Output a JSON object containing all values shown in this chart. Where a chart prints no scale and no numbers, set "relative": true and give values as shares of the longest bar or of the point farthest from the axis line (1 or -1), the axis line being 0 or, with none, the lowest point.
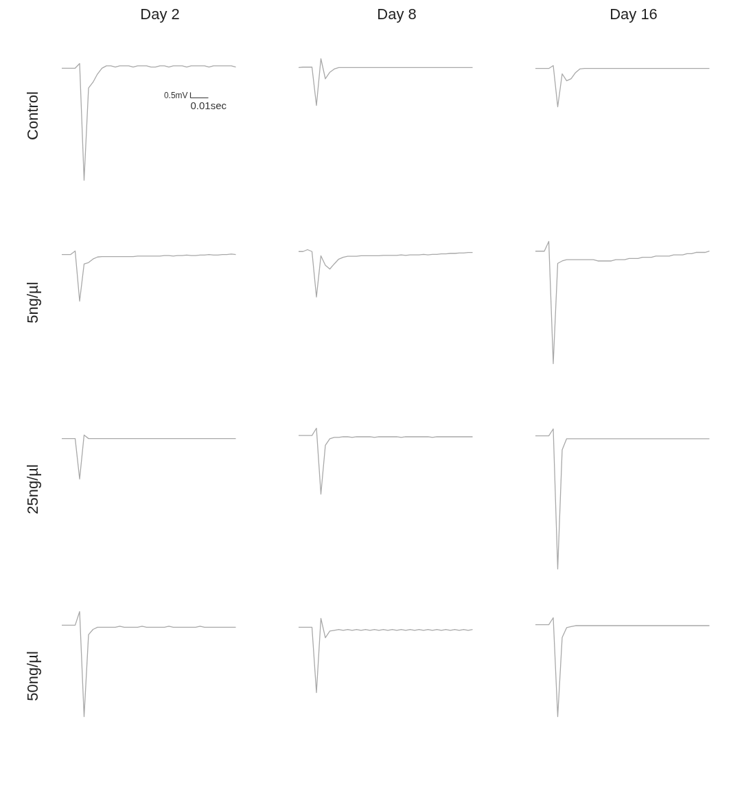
{
  "chart_data": [
    {
      "type": "line",
      "relative": true,
      "title": "Day 2",
      "ylabel": "Control",
      "tick_labels": false,
      "annotations": [
        "0.5mV",
        "0.01sec"
      ],
      "categories": [
        null,
        null,
        null,
        null,
        null,
        null,
        null,
        null,
        null,
        null,
        null,
        null,
        null,
        null,
        null,
        null,
        null,
        null,
        null,
        null,
        null,
        null,
        null,
        null,
        null,
        null,
        null,
        null,
        null,
        null,
        null,
        null,
        null,
        null,
        null,
        null,
        null,
        null,
        null,
        null
      ],
      "series": [
        {
          "color": "#a8a8a8",
          "values": [
            0.96,
            0.96,
            0.96,
            0.96,
            1.0,
            0,
            0.79,
            0.84,
            0.91,
            0.96,
            0.98,
            0.98,
            0.97,
            0.98,
            0.98,
            0.98,
            0.97,
            0.98,
            0.98,
            0.98,
            0.97,
            0.97,
            0.98,
            0.98,
            0.97,
            0.98,
            0.98,
            0.98,
            0.97,
            0.98,
            0.98,
            0.98,
            0.98,
            0.97,
            0.98,
            0.98,
            0.98,
            0.98,
            0.98,
            0.97
          ]
        }
      ]
    },
    {
      "type": "line",
      "relative": true,
      "title": "Day 8",
      "tick_labels": false,
      "categories": [
        null,
        null,
        null,
        null,
        null,
        null,
        null,
        null,
        null,
        null,
        null,
        null,
        null,
        null,
        null,
        null,
        null,
        null,
        null,
        null,
        null,
        null,
        null,
        null,
        null,
        null,
        null,
        null,
        null,
        null,
        null,
        null,
        null,
        null,
        null,
        null,
        null,
        null,
        null,
        null
      ],
      "series": [
        {
          "color": "#a8a8a8",
          "values": [
            0.81,
            0.82,
            0.82,
            0.82,
            0,
            1.0,
            0.57,
            0.71,
            0.78,
            0.81,
            0.81,
            0.81,
            0.81,
            0.81,
            0.81,
            0.81,
            0.81,
            0.81,
            0.81,
            0.81,
            0.81,
            0.81,
            0.81,
            0.81,
            0.81,
            0.81,
            0.81,
            0.81,
            0.81,
            0.81,
            0.81,
            0.81,
            0.81,
            0.81,
            0.81,
            0.81,
            0.81,
            0.81,
            0.81,
            0.81
          ]
        }
      ]
    },
    {
      "type": "line",
      "relative": true,
      "title": "Day 16",
      "tick_labels": false,
      "categories": [
        null,
        null,
        null,
        null,
        null,
        null,
        null,
        null,
        null,
        null,
        null,
        null,
        null,
        null,
        null,
        null,
        null,
        null,
        null,
        null,
        null,
        null,
        null,
        null,
        null,
        null,
        null,
        null,
        null,
        null,
        null,
        null,
        null,
        null,
        null,
        null,
        null,
        null,
        null,
        null
      ],
      "series": [
        {
          "color": "#a8a8a8",
          "values": [
            0.93,
            0.93,
            0.93,
            0.93,
            1.0,
            0,
            0.8,
            0.63,
            0.68,
            0.83,
            0.92,
            0.93,
            0.93,
            0.93,
            0.93,
            0.93,
            0.93,
            0.93,
            0.93,
            0.93,
            0.93,
            0.93,
            0.93,
            0.93,
            0.93,
            0.93,
            0.93,
            0.93,
            0.93,
            0.93,
            0.93,
            0.93,
            0.93,
            0.93,
            0.93,
            0.93,
            0.93,
            0.93,
            0.93,
            0.93
          ]
        }
      ]
    },
    {
      "type": "line",
      "relative": true,
      "ylabel": "5ng/µl",
      "tick_labels": false,
      "categories": [
        null,
        null,
        null,
        null,
        null,
        null,
        null,
        null,
        null,
        null,
        null,
        null,
        null,
        null,
        null,
        null,
        null,
        null,
        null,
        null,
        null,
        null,
        null,
        null,
        null,
        null,
        null,
        null,
        null,
        null,
        null,
        null,
        null,
        null,
        null,
        null,
        null,
        null,
        null,
        null
      ],
      "series": [
        {
          "color": "#a8a8a8",
          "values": [
            0.93,
            0.93,
            0.93,
            1.0,
            0,
            0.74,
            0.77,
            0.84,
            0.88,
            0.89,
            0.89,
            0.89,
            0.89,
            0.89,
            0.89,
            0.89,
            0.89,
            0.9,
            0.9,
            0.9,
            0.9,
            0.9,
            0.9,
            0.91,
            0.91,
            0.9,
            0.91,
            0.91,
            0.92,
            0.91,
            0.91,
            0.92,
            0.92,
            0.93,
            0.92,
            0.92,
            0.93,
            0.93,
            0.94,
            0.93
          ]
        }
      ]
    },
    {
      "type": "line",
      "relative": true,
      "tick_labels": false,
      "categories": [
        null,
        null,
        null,
        null,
        null,
        null,
        null,
        null,
        null,
        null,
        null,
        null,
        null,
        null,
        null,
        null,
        null,
        null,
        null,
        null,
        null,
        null,
        null,
        null,
        null,
        null,
        null,
        null,
        null,
        null,
        null,
        null,
        null,
        null,
        null,
        null,
        null,
        null,
        null,
        null
      ],
      "series": [
        {
          "color": "#a8a8a8",
          "values": [
            0.96,
            0.96,
            1.0,
            0.96,
            0,
            0.87,
            0.67,
            0.59,
            0.7,
            0.8,
            0.84,
            0.86,
            0.86,
            0.86,
            0.87,
            0.87,
            0.87,
            0.87,
            0.87,
            0.88,
            0.88,
            0.88,
            0.88,
            0.89,
            0.88,
            0.89,
            0.89,
            0.89,
            0.9,
            0.89,
            0.9,
            0.9,
            0.91,
            0.91,
            0.92,
            0.92,
            0.93,
            0.93,
            0.94,
            0.94
          ]
        }
      ]
    },
    {
      "type": "line",
      "relative": true,
      "tick_labels": false,
      "categories": [
        null,
        null,
        null,
        null,
        null,
        null,
        null,
        null,
        null,
        null,
        null,
        null,
        null,
        null,
        null,
        null,
        null,
        null,
        null,
        null,
        null,
        null,
        null,
        null,
        null,
        null,
        null,
        null,
        null,
        null,
        null,
        null,
        null,
        null,
        null,
        null,
        null,
        null,
        null,
        null
      ],
      "series": [
        {
          "color": "#a8a8a8",
          "values": [
            0.92,
            0.92,
            0.92,
            1.0,
            0,
            0.82,
            0.84,
            0.85,
            0.85,
            0.85,
            0.85,
            0.85,
            0.85,
            0.85,
            0.84,
            0.84,
            0.84,
            0.84,
            0.85,
            0.85,
            0.85,
            0.86,
            0.86,
            0.86,
            0.87,
            0.87,
            0.87,
            0.88,
            0.88,
            0.88,
            0.88,
            0.89,
            0.89,
            0.89,
            0.9,
            0.9,
            0.91,
            0.91,
            0.91,
            0.92
          ]
        }
      ]
    },
    {
      "type": "line",
      "relative": true,
      "ylabel": "25ng/µl",
      "tick_labels": false,
      "categories": [
        null,
        null,
        null,
        null,
        null,
        null,
        null,
        null,
        null,
        null,
        null,
        null,
        null,
        null,
        null,
        null,
        null,
        null,
        null,
        null,
        null,
        null,
        null,
        null,
        null,
        null,
        null,
        null,
        null,
        null,
        null,
        null,
        null,
        null,
        null,
        null,
        null,
        null,
        null,
        null
      ],
      "series": [
        {
          "color": "#a8a8a8",
          "values": [
            0.92,
            0.92,
            0.92,
            0.92,
            0,
            1.0,
            0.92,
            0.92,
            0.92,
            0.92,
            0.92,
            0.92,
            0.92,
            0.92,
            0.92,
            0.92,
            0.92,
            0.92,
            0.92,
            0.92,
            0.92,
            0.92,
            0.92,
            0.92,
            0.92,
            0.92,
            0.92,
            0.92,
            0.92,
            0.92,
            0.92,
            0.92,
            0.92,
            0.92,
            0.92,
            0.92,
            0.92,
            0.92,
            0.92,
            0.92
          ]
        }
      ]
    },
    {
      "type": "line",
      "relative": true,
      "tick_labels": false,
      "categories": [
        null,
        null,
        null,
        null,
        null,
        null,
        null,
        null,
        null,
        null,
        null,
        null,
        null,
        null,
        null,
        null,
        null,
        null,
        null,
        null,
        null,
        null,
        null,
        null,
        null,
        null,
        null,
        null,
        null,
        null,
        null,
        null,
        null,
        null,
        null,
        null,
        null,
        null,
        null,
        null
      ],
      "series": [
        {
          "color": "#a8a8a8",
          "values": [
            0.89,
            0.89,
            0.89,
            0.89,
            1.0,
            0,
            0.74,
            0.84,
            0.86,
            0.86,
            0.87,
            0.87,
            0.86,
            0.87,
            0.87,
            0.87,
            0.87,
            0.86,
            0.87,
            0.87,
            0.87,
            0.87,
            0.87,
            0.86,
            0.87,
            0.87,
            0.87,
            0.87,
            0.87,
            0.87,
            0.86,
            0.87,
            0.87,
            0.87,
            0.87,
            0.87,
            0.87,
            0.87,
            0.87,
            0.87
          ]
        }
      ]
    },
    {
      "type": "line",
      "relative": true,
      "tick_labels": false,
      "categories": [
        null,
        null,
        null,
        null,
        null,
        null,
        null,
        null,
        null,
        null,
        null,
        null,
        null,
        null,
        null,
        null,
        null,
        null,
        null,
        null,
        null,
        null,
        null,
        null,
        null,
        null,
        null,
        null,
        null,
        null,
        null,
        null,
        null,
        null,
        null,
        null,
        null,
        null,
        null,
        null
      ],
      "series": [
        {
          "color": "#a8a8a8",
          "values": [
            0.95,
            0.95,
            0.95,
            0.95,
            1.0,
            0,
            0.85,
            0.93,
            0.93,
            0.93,
            0.93,
            0.93,
            0.93,
            0.93,
            0.93,
            0.93,
            0.93,
            0.93,
            0.93,
            0.93,
            0.93,
            0.93,
            0.93,
            0.93,
            0.93,
            0.93,
            0.93,
            0.93,
            0.93,
            0.93,
            0.93,
            0.93,
            0.93,
            0.93,
            0.93,
            0.93,
            0.93,
            0.93,
            0.93,
            0.93
          ]
        }
      ]
    },
    {
      "type": "line",
      "relative": true,
      "ylabel": "50ng/µl",
      "tick_labels": false,
      "categories": [
        null,
        null,
        null,
        null,
        null,
        null,
        null,
        null,
        null,
        null,
        null,
        null,
        null,
        null,
        null,
        null,
        null,
        null,
        null,
        null,
        null,
        null,
        null,
        null,
        null,
        null,
        null,
        null,
        null,
        null,
        null,
        null,
        null,
        null,
        null,
        null,
        null,
        null,
        null,
        null
      ],
      "series": [
        {
          "color": "#a8a8a8",
          "values": [
            0.87,
            0.87,
            0.87,
            0.87,
            1.0,
            0,
            0.78,
            0.83,
            0.85,
            0.85,
            0.85,
            0.85,
            0.85,
            0.86,
            0.85,
            0.85,
            0.85,
            0.85,
            0.86,
            0.85,
            0.85,
            0.85,
            0.85,
            0.85,
            0.86,
            0.85,
            0.85,
            0.85,
            0.85,
            0.85,
            0.85,
            0.86,
            0.85,
            0.85,
            0.85,
            0.85,
            0.85,
            0.85,
            0.85,
            0.85
          ]
        }
      ]
    },
    {
      "type": "line",
      "relative": true,
      "tick_labels": false,
      "categories": [
        null,
        null,
        null,
        null,
        null,
        null,
        null,
        null,
        null,
        null,
        null,
        null,
        null,
        null,
        null,
        null,
        null,
        null,
        null,
        null,
        null,
        null,
        null,
        null,
        null,
        null,
        null,
        null,
        null,
        null,
        null,
        null,
        null,
        null,
        null,
        null,
        null,
        null,
        null,
        null
      ],
      "series": [
        {
          "color": "#a8a8a8",
          "values": [
            0.88,
            0.88,
            0.88,
            0.88,
            0,
            1.0,
            0.74,
            0.83,
            0.84,
            0.85,
            0.84,
            0.85,
            0.84,
            0.85,
            0.84,
            0.85,
            0.84,
            0.85,
            0.84,
            0.85,
            0.84,
            0.85,
            0.84,
            0.85,
            0.84,
            0.85,
            0.84,
            0.85,
            0.84,
            0.85,
            0.84,
            0.85,
            0.84,
            0.85,
            0.84,
            0.85,
            0.84,
            0.85,
            0.84,
            0.85
          ]
        }
      ]
    },
    {
      "type": "line",
      "relative": true,
      "tick_labels": false,
      "categories": [
        null,
        null,
        null,
        null,
        null,
        null,
        null,
        null,
        null,
        null,
        null,
        null,
        null,
        null,
        null,
        null,
        null,
        null,
        null,
        null,
        null,
        null,
        null,
        null,
        null,
        null,
        null,
        null,
        null,
        null,
        null,
        null,
        null,
        null,
        null,
        null,
        null,
        null,
        null,
        null
      ],
      "series": [
        {
          "color": "#a8a8a8",
          "values": [
            0.93,
            0.93,
            0.93,
            0.93,
            1.0,
            0,
            0.8,
            0.9,
            0.91,
            0.92,
            0.92,
            0.92,
            0.92,
            0.92,
            0.92,
            0.92,
            0.92,
            0.92,
            0.92,
            0.92,
            0.92,
            0.92,
            0.92,
            0.92,
            0.92,
            0.92,
            0.92,
            0.92,
            0.92,
            0.92,
            0.92,
            0.92,
            0.92,
            0.92,
            0.92,
            0.92,
            0.92,
            0.92,
            0.92,
            0.92
          ]
        }
      ]
    }
  ]
}
